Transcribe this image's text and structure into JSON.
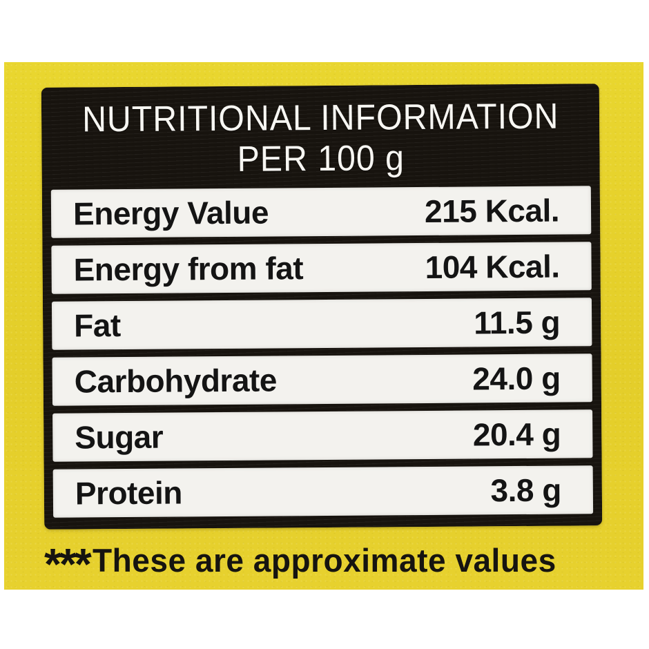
{
  "panel": {
    "title_line1": "NUTRITIONAL INFORMATION",
    "title_line2": "PER 100 g",
    "rows": [
      {
        "name": "Energy Value",
        "value": "215 Kcal."
      },
      {
        "name": "Energy from fat",
        "value": "104 Kcal."
      },
      {
        "name": "Fat",
        "value": "11.5 g"
      },
      {
        "name": "Carbohydrate",
        "value": "24.0 g"
      },
      {
        "name": "Sugar",
        "value": "20.4 g"
      },
      {
        "name": "Protein",
        "value": "3.8 g"
      }
    ]
  },
  "footnote": {
    "marker": "***",
    "text": "These are approximate values"
  },
  "colors": {
    "package_yellow": "#e6d02c",
    "panel_black": "#17130e",
    "row_white": "#f3f2ee",
    "title_white": "#f7f6f2",
    "text_black": "#141414",
    "photo_margin_white": "#ffffff"
  }
}
